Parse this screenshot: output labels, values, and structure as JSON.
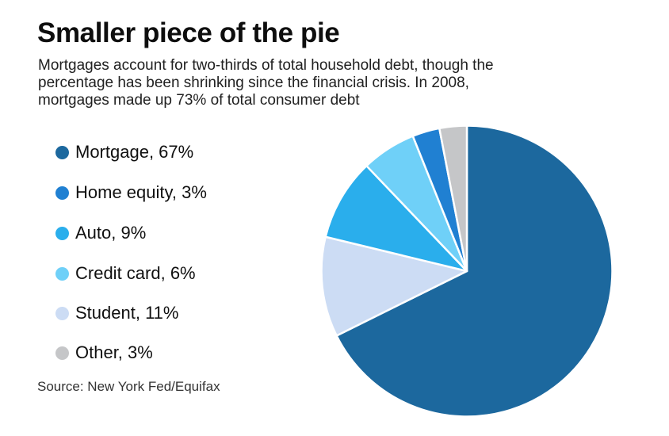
{
  "page": {
    "background": "#ffffff"
  },
  "header": {
    "title": "Smaller piece of the pie",
    "subtitle_lines": [
      "Mortgages account for two-thirds of total household debt, though the",
      "percentage has been shrinking since the financial crisis. In 2008,",
      "mortgages made up 73% of total consumer debt"
    ]
  },
  "legend": {
    "items": [
      {
        "label": "Mortgage, 67%",
        "color": "#1c689e"
      },
      {
        "label": "Home equity, 3%",
        "color": "#2080d2"
      },
      {
        "label": "Auto, 9%",
        "color": "#2aaeec"
      },
      {
        "label": "Credit card, 6%",
        "color": "#6fd0f8"
      },
      {
        "label": "Student, 11%",
        "color": "#ccdcf4"
      },
      {
        "label": "Other, 3%",
        "color": "#c5c6c8"
      }
    ]
  },
  "source": {
    "text": "Source: New York Fed/Equifax"
  },
  "chart_data": {
    "type": "pie",
    "title": "Smaller piece of the pie",
    "subtitle": "Mortgages account for two-thirds of total household debt, though the percentage has been shrinking since the financial crisis. In 2008, mortgages made up 73% of total consumer debt",
    "values_unit": "percent",
    "values_sum_shown": 99,
    "start_angle_deg": 0,
    "direction": "clockwise",
    "legend_position": "left",
    "slice_separator_color": "#ffffff",
    "slices": [
      {
        "label": "Mortgage",
        "value": 67,
        "color": "#1c689e"
      },
      {
        "label": "Student",
        "value": 11,
        "color": "#ccdcf4"
      },
      {
        "label": "Auto",
        "value": 9,
        "color": "#2aaeec"
      },
      {
        "label": "Credit card",
        "value": 6,
        "color": "#6fd0f8"
      },
      {
        "label": "Home equity",
        "value": 3,
        "color": "#2080d2"
      },
      {
        "label": "Other",
        "value": 3,
        "color": "#c5c6c8"
      }
    ]
  }
}
